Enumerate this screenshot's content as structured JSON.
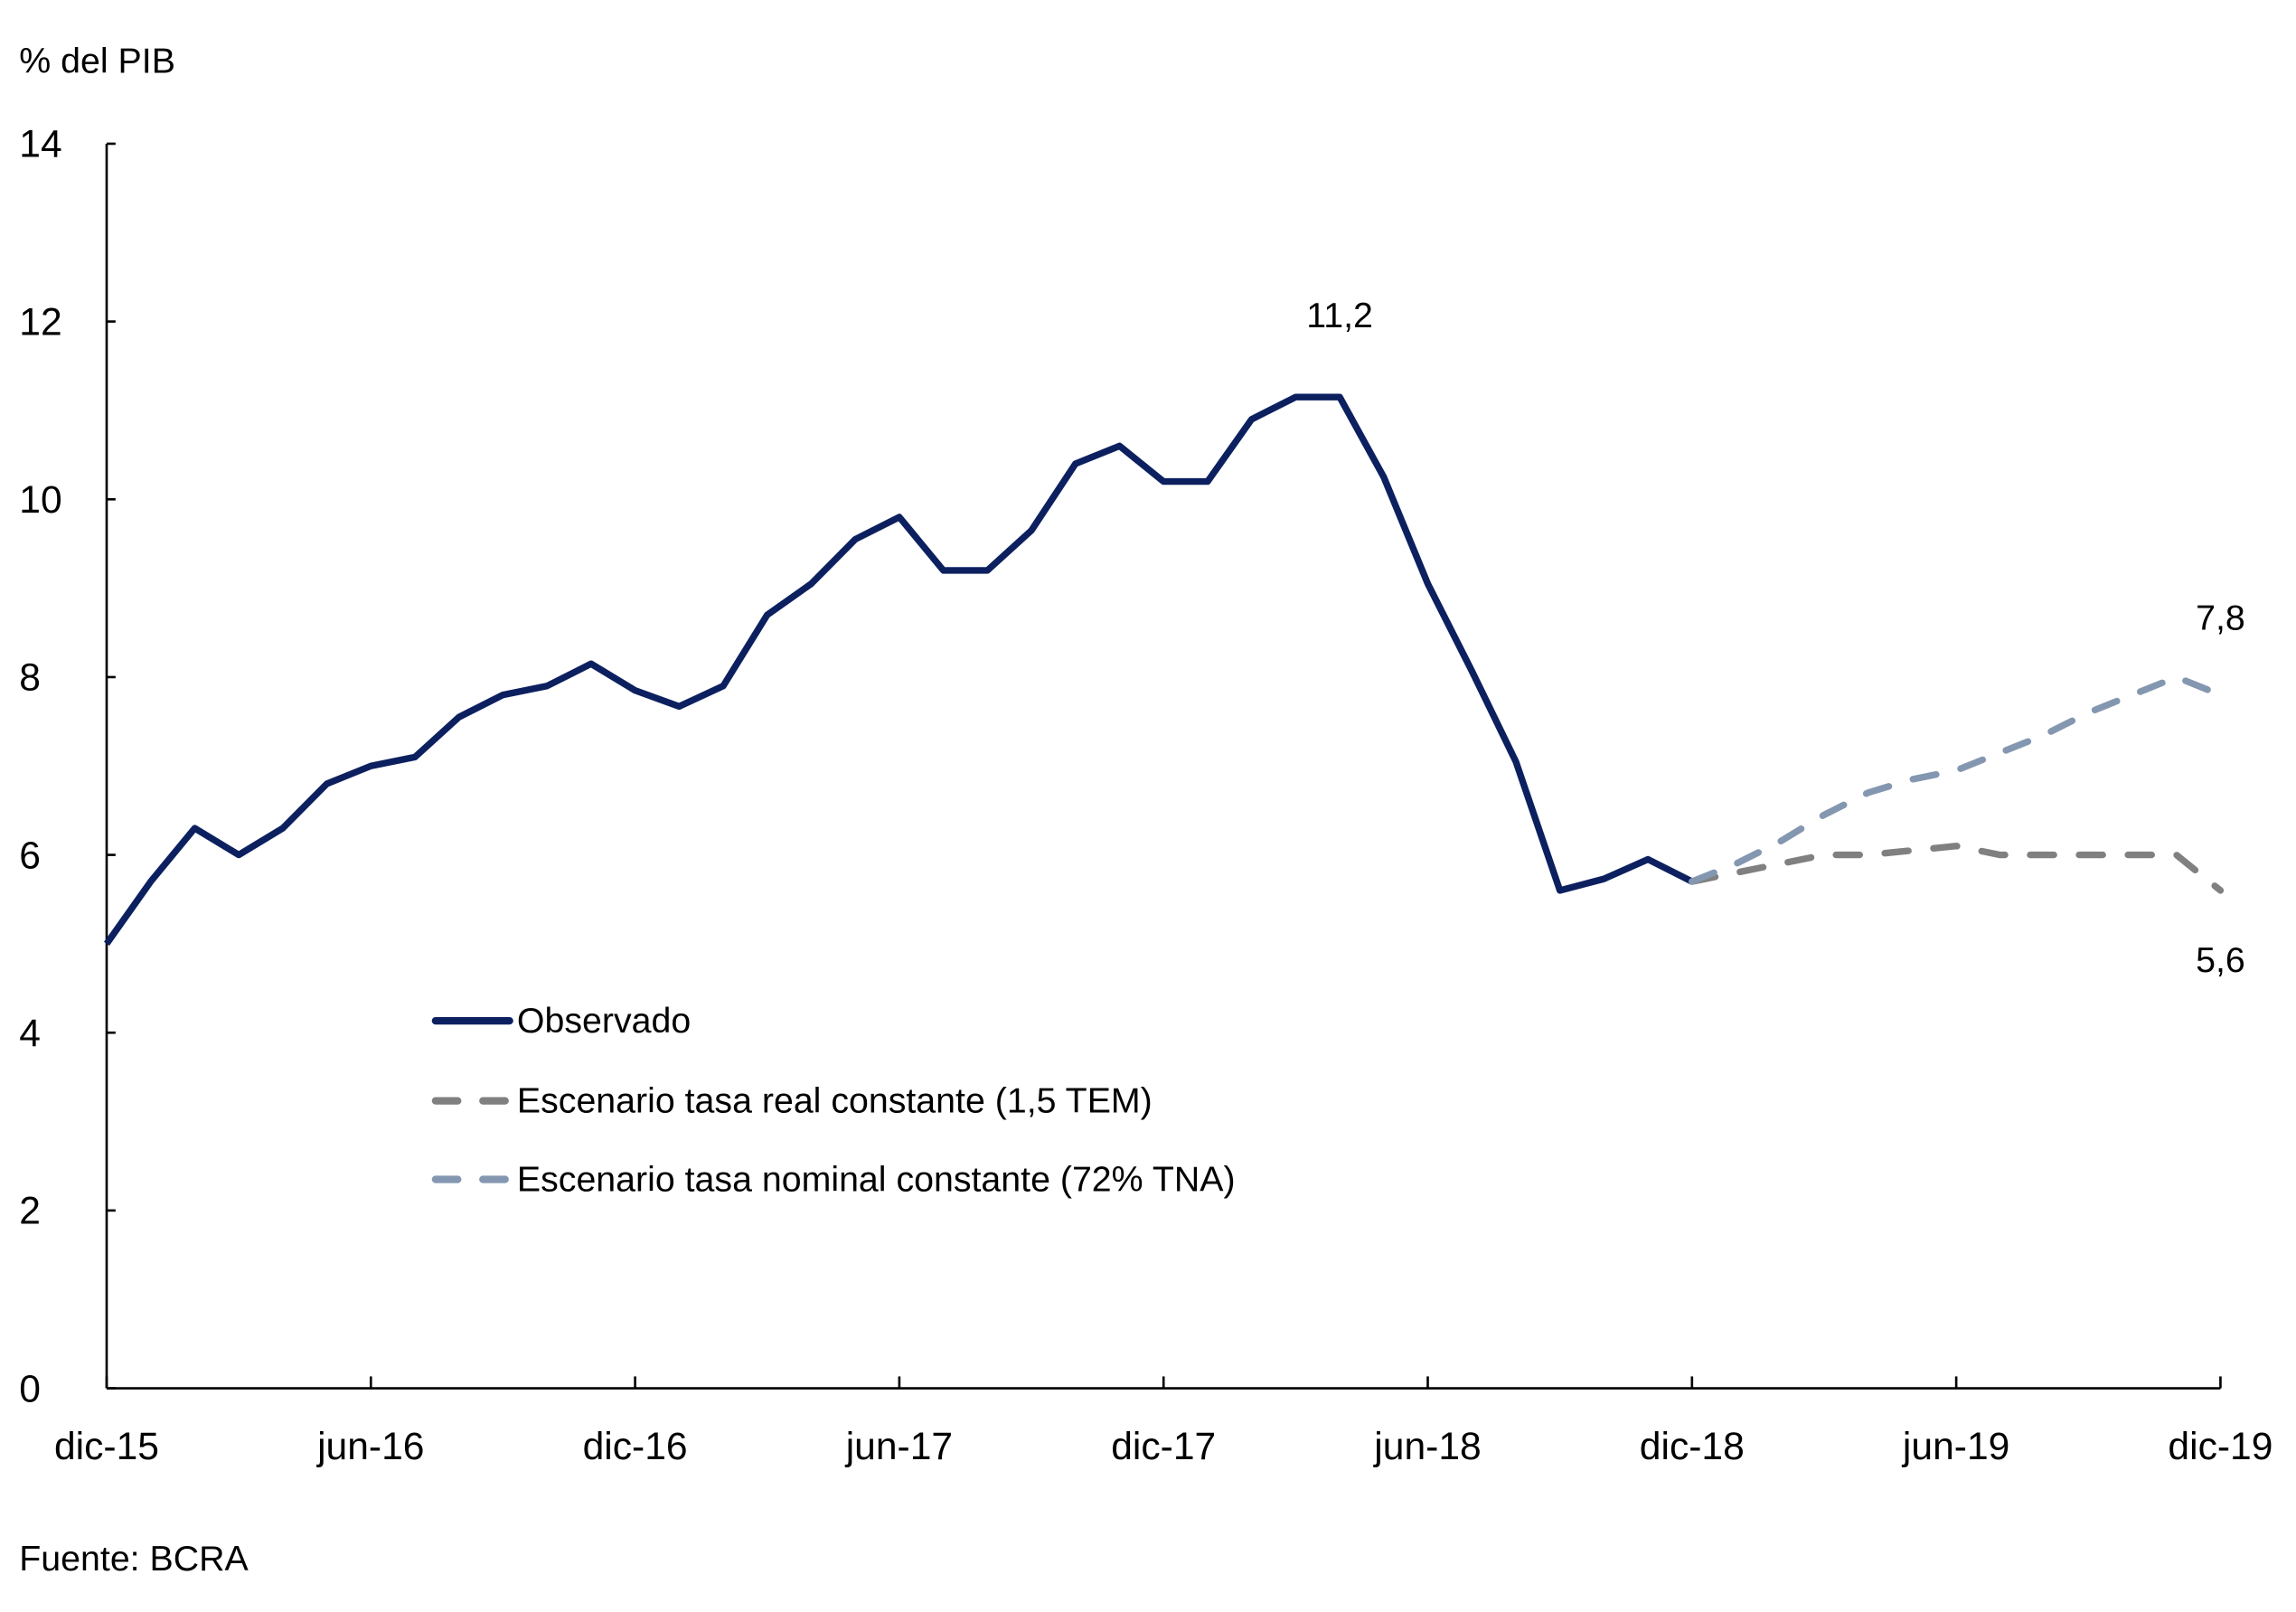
{
  "chart_data": {
    "type": "line",
    "title": "",
    "ylabel": "% del PIB",
    "xlabel": "",
    "ylim": [
      0,
      14
    ],
    "yticks": [
      0,
      2,
      4,
      6,
      8,
      10,
      12,
      14
    ],
    "grid": false,
    "x_start": "dic-15",
    "x_end": "dic-19",
    "frequency": "monthly",
    "xtick_labels": [
      "dic-15",
      "jun-16",
      "dic-16",
      "jun-17",
      "dic-17",
      "jun-18",
      "dic-18",
      "jun-19",
      "dic-19"
    ],
    "legend_position": "lower-center-left",
    "series": [
      {
        "name": "Observado",
        "color": "#0c2060",
        "style": "solid",
        "start_month_index": 0,
        "values": [
          5.0,
          5.7,
          6.3,
          6.0,
          6.3,
          6.8,
          7.0,
          7.1,
          7.55,
          7.8,
          7.9,
          8.15,
          7.85,
          7.67,
          7.9,
          8.7,
          9.05,
          9.55,
          9.8,
          9.2,
          9.2,
          9.65,
          10.4,
          10.6,
          10.2,
          10.2,
          10.9,
          11.15,
          11.15,
          10.25,
          9.05,
          8.07,
          7.05,
          5.6,
          5.73,
          5.95,
          5.7
        ]
      },
      {
        "name": "Escenario tasa real constante (1,5 TEM)",
        "color": "#808080",
        "style": "dashed",
        "start_month_index": 36,
        "values": [
          5.7,
          5.8,
          5.9,
          6.0,
          6.0,
          6.05,
          6.1,
          6.0,
          6.0,
          6.0,
          6.0,
          6.0,
          5.6
        ]
      },
      {
        "name": "Escenario tasa nominal constante (72% TNA)",
        "color": "#8497b0",
        "style": "dashed",
        "start_month_index": 36,
        "values": [
          5.7,
          5.9,
          6.15,
          6.45,
          6.7,
          6.85,
          6.95,
          7.15,
          7.35,
          7.6,
          7.8,
          8.0,
          7.8
        ]
      }
    ],
    "annotations": [
      {
        "text": "11,2",
        "series": "Observado",
        "month_index": 28,
        "value": 11.2
      },
      {
        "text": "7,8",
        "series": "Escenario tasa nominal constante (72% TNA)",
        "month_index": 48,
        "value": 7.8
      },
      {
        "text": "5,6",
        "series": "Escenario tasa real constante (1,5 TEM)",
        "month_index": 48,
        "value": 5.6
      }
    ],
    "source": "Fuente: BCRA"
  }
}
